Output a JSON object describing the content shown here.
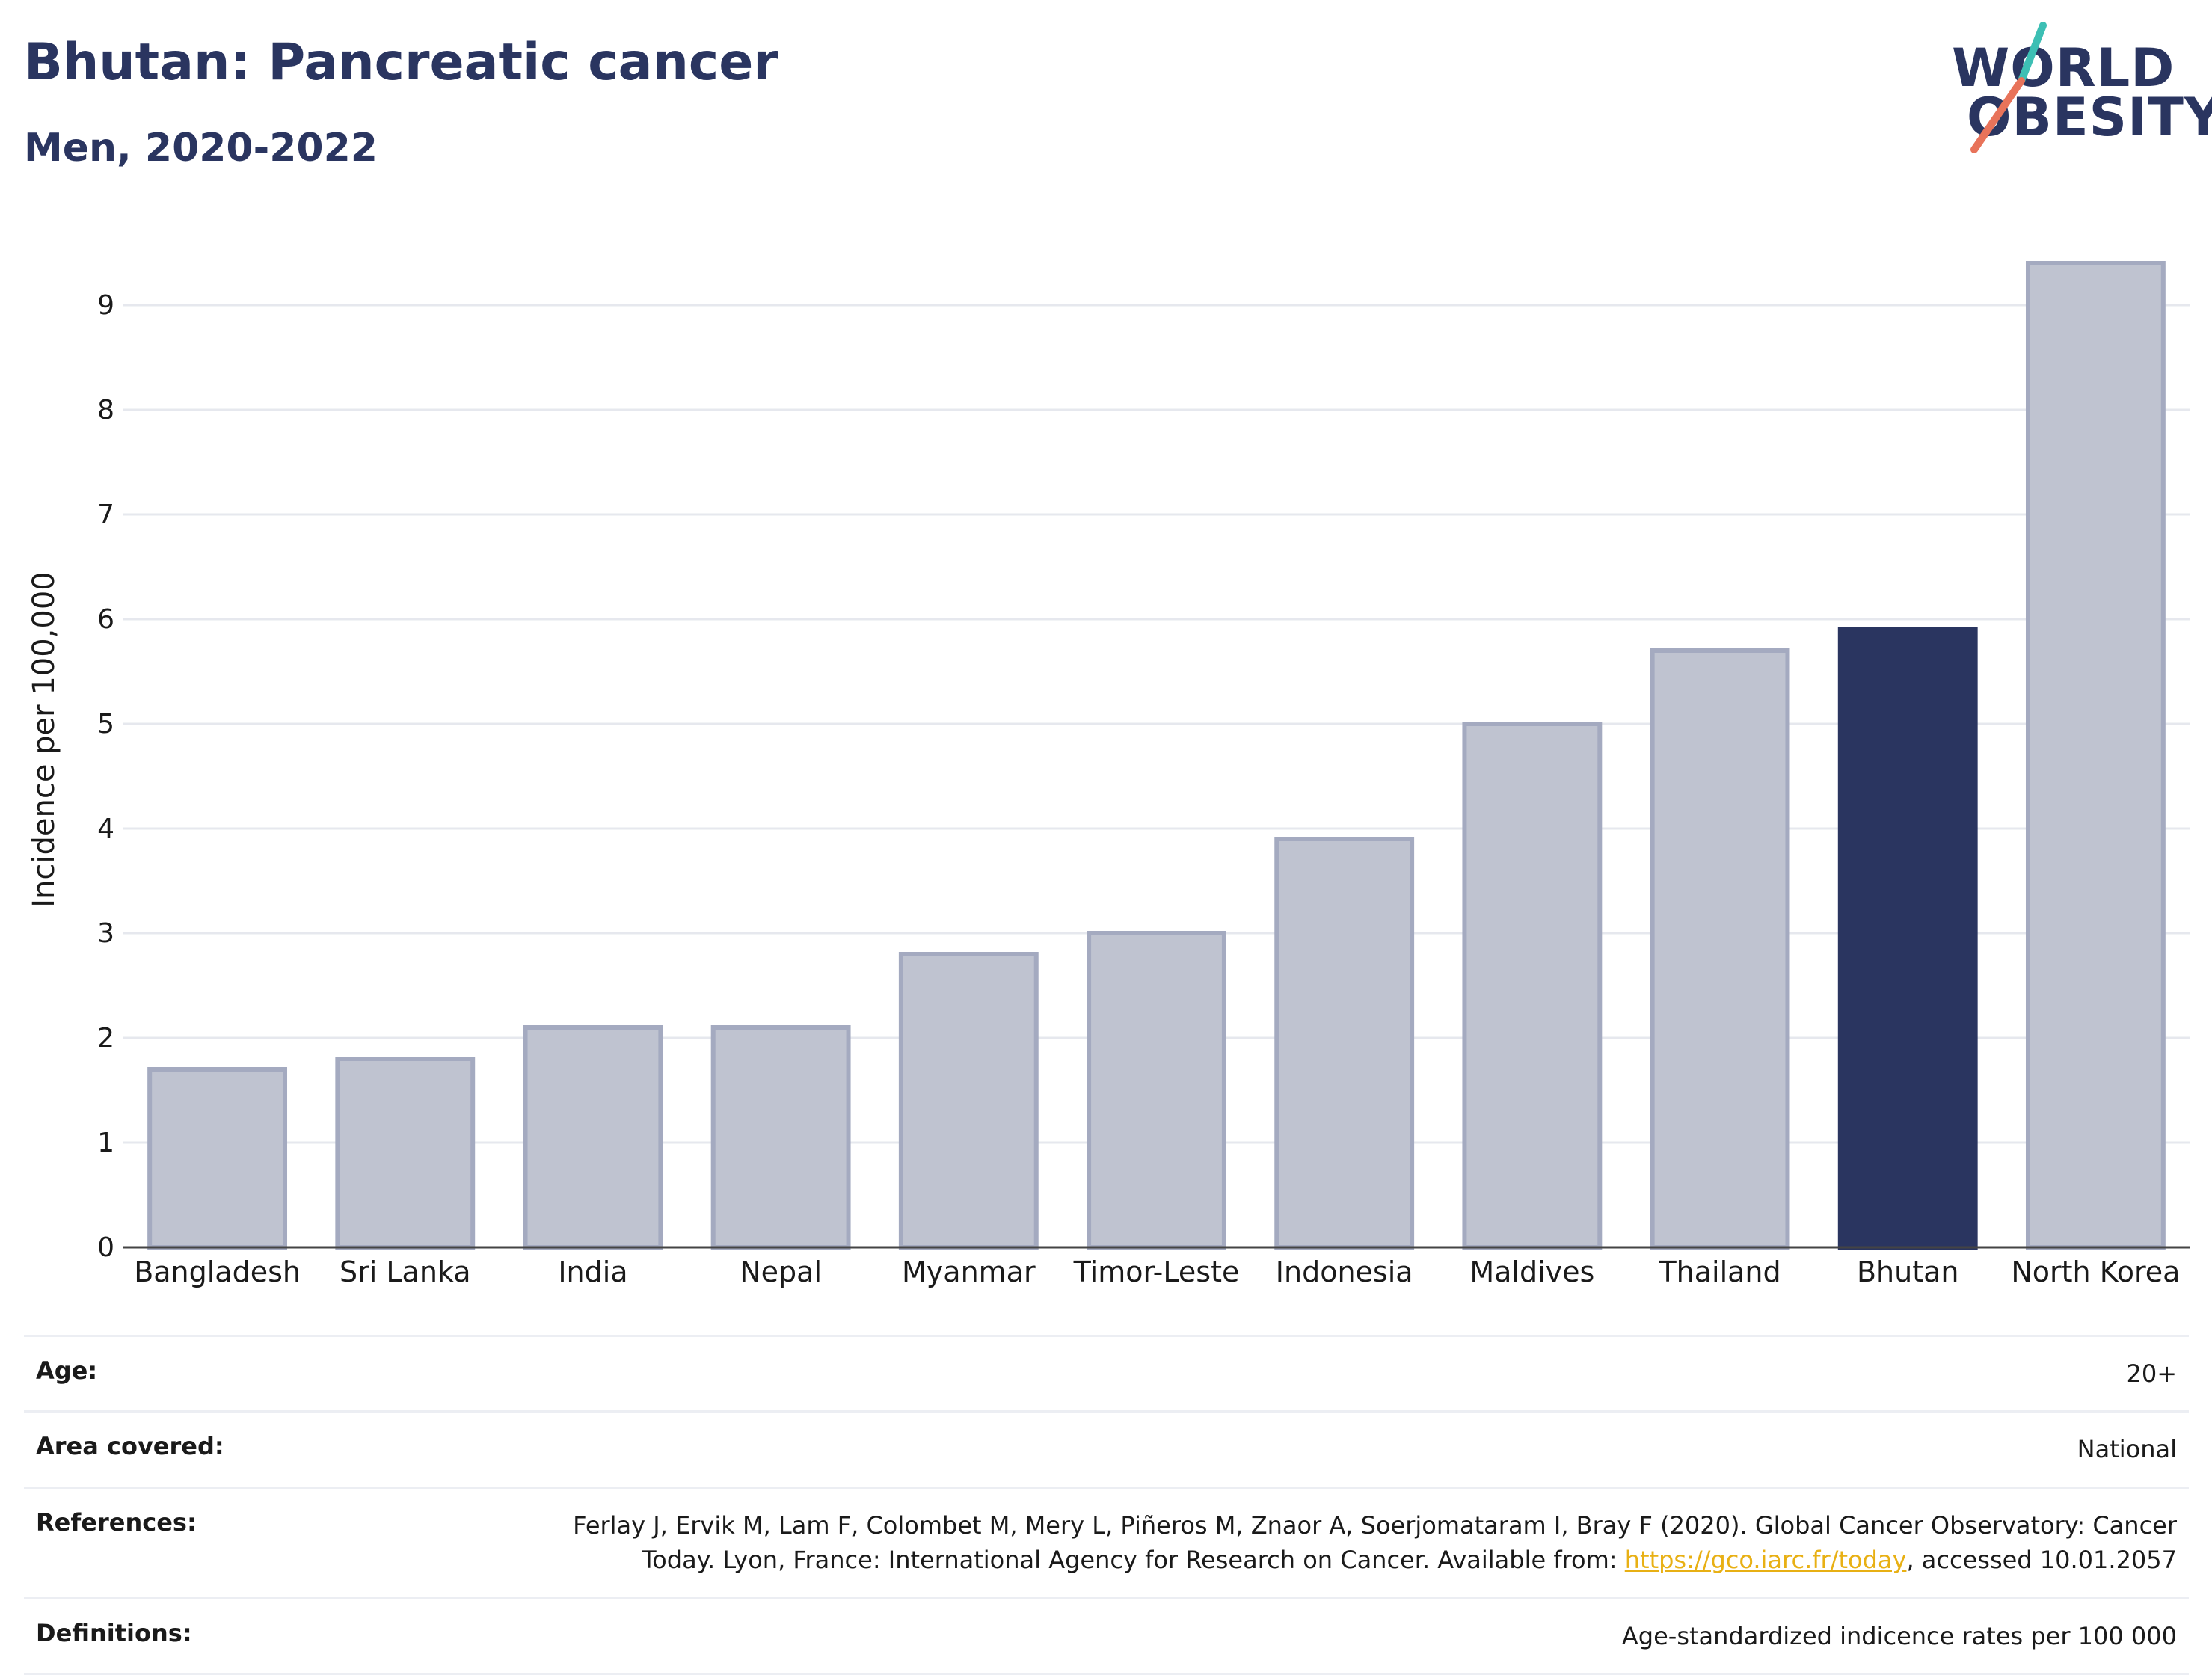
{
  "header": {
    "title": "Bhutan: Pancreatic cancer",
    "subtitle": "Men, 2020-2022",
    "logo_line1": "WORLD",
    "logo_line2": "OBESITY"
  },
  "colors": {
    "highlight": "#2a3560",
    "bar": "#bfc3d0",
    "bar_border": "#a4aac0",
    "logo_slash_top": "#3dbfb4",
    "logo_slash_bottom": "#e8735a",
    "link": "#e8b014"
  },
  "chart_data": {
    "type": "bar",
    "categories": [
      "Bangladesh",
      "Sri Lanka",
      "India",
      "Nepal",
      "Myanmar",
      "Timor-Leste",
      "Indonesia",
      "Maldives",
      "Thailand",
      "Bhutan",
      "North Korea"
    ],
    "values": [
      1.7,
      1.8,
      2.1,
      2.1,
      2.8,
      3.0,
      3.9,
      5.0,
      5.7,
      5.9,
      9.4
    ],
    "highlight": "Bhutan",
    "ylabel": "Incidence per 100,000",
    "xlabel": "",
    "ylim": [
      0,
      9.7
    ],
    "yticks": [
      0,
      1,
      2,
      3,
      4,
      5,
      6,
      7,
      8,
      9
    ],
    "grid": true
  },
  "info": {
    "age_label": "Age:",
    "age_value": "20+",
    "area_label": "Area covered:",
    "area_value": "National",
    "references_label": "References:",
    "references_text_before": "Ferlay J, Ervik M, Lam F, Colombet M, Mery L, Piñeros M, Znaor A, Soerjomataram I, Bray F (2020). Global Cancer Observatory: Cancer Today. Lyon, France: International Agency for Research on Cancer. Available from: ",
    "references_link": "https://gco.iarc.fr/today",
    "references_text_after": ", accessed 10.01.2057",
    "definitions_label": "Definitions:",
    "definitions_value": "Age-standardized indicence rates per 100 000"
  }
}
